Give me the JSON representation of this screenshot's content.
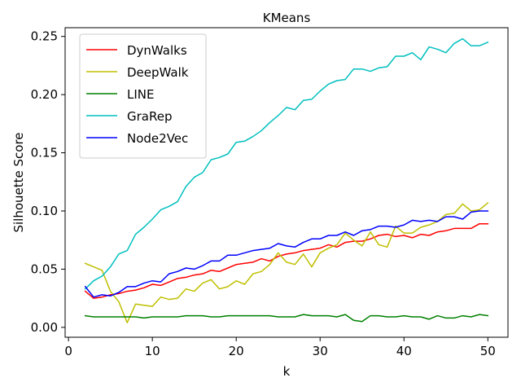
{
  "chart_data": {
    "type": "line",
    "title": "KMeans",
    "xlabel": "k",
    "ylabel": "Silhouette Score",
    "xlim": [
      -0.4,
      52.4
    ],
    "ylim": [
      -0.0085,
      0.2575
    ],
    "xticks": [
      0,
      10,
      20,
      30,
      40,
      50
    ],
    "yticks": [
      0.0,
      0.05,
      0.1,
      0.15,
      0.2,
      0.25
    ],
    "ytick_labels": [
      "0.00",
      "0.05",
      "0.10",
      "0.15",
      "0.20",
      "0.25"
    ],
    "grid": false,
    "legend_position": "upper-left",
    "x": [
      2,
      3,
      4,
      5,
      6,
      7,
      8,
      9,
      10,
      11,
      12,
      13,
      14,
      15,
      16,
      17,
      18,
      19,
      20,
      21,
      22,
      23,
      24,
      25,
      26,
      27,
      28,
      29,
      30,
      31,
      32,
      33,
      34,
      35,
      36,
      37,
      38,
      39,
      40,
      41,
      42,
      43,
      44,
      45,
      46,
      47,
      48,
      49,
      50
    ],
    "series": [
      {
        "name": "DynWalks",
        "color": "#ff0000",
        "values": [
          0.031,
          0.025,
          0.026,
          0.028,
          0.029,
          0.031,
          0.032,
          0.034,
          0.037,
          0.036,
          0.039,
          0.042,
          0.043,
          0.045,
          0.046,
          0.049,
          0.048,
          0.051,
          0.054,
          0.055,
          0.056,
          0.059,
          0.057,
          0.061,
          0.063,
          0.064,
          0.066,
          0.067,
          0.068,
          0.071,
          0.069,
          0.073,
          0.074,
          0.074,
          0.076,
          0.079,
          0.08,
          0.078,
          0.079,
          0.077,
          0.08,
          0.079,
          0.082,
          0.083,
          0.085,
          0.085,
          0.085,
          0.089,
          0.089
        ]
      },
      {
        "name": "DeepWalk",
        "color": "#bfbf00",
        "values": [
          0.055,
          0.052,
          0.049,
          0.031,
          0.022,
          0.004,
          0.02,
          0.019,
          0.018,
          0.026,
          0.024,
          0.025,
          0.033,
          0.031,
          0.038,
          0.041,
          0.033,
          0.035,
          0.04,
          0.037,
          0.046,
          0.048,
          0.054,
          0.064,
          0.056,
          0.054,
          0.063,
          0.052,
          0.064,
          0.068,
          0.071,
          0.081,
          0.075,
          0.07,
          0.082,
          0.071,
          0.069,
          0.087,
          0.081,
          0.081,
          0.086,
          0.088,
          0.091,
          0.097,
          0.098,
          0.106,
          0.1,
          0.101,
          0.107
        ]
      },
      {
        "name": "LINE",
        "color": "#008000",
        "values": [
          0.01,
          0.009,
          0.009,
          0.009,
          0.009,
          0.009,
          0.009,
          0.008,
          0.009,
          0.009,
          0.009,
          0.009,
          0.01,
          0.01,
          0.01,
          0.009,
          0.009,
          0.01,
          0.01,
          0.01,
          0.01,
          0.01,
          0.01,
          0.009,
          0.009,
          0.009,
          0.011,
          0.01,
          0.01,
          0.01,
          0.009,
          0.011,
          0.006,
          0.005,
          0.01,
          0.01,
          0.009,
          0.009,
          0.01,
          0.009,
          0.009,
          0.007,
          0.01,
          0.008,
          0.008,
          0.01,
          0.009,
          0.011,
          0.01
        ]
      },
      {
        "name": "GraRep",
        "color": "#00bfbf",
        "values": [
          0.033,
          0.04,
          0.044,
          0.052,
          0.063,
          0.066,
          0.08,
          0.086,
          0.093,
          0.101,
          0.104,
          0.108,
          0.121,
          0.129,
          0.133,
          0.144,
          0.146,
          0.149,
          0.159,
          0.16,
          0.164,
          0.169,
          0.176,
          0.182,
          0.189,
          0.187,
          0.195,
          0.196,
          0.203,
          0.209,
          0.212,
          0.213,
          0.222,
          0.222,
          0.22,
          0.223,
          0.224,
          0.233,
          0.233,
          0.236,
          0.23,
          0.241,
          0.239,
          0.236,
          0.244,
          0.248,
          0.242,
          0.242,
          0.245
        ]
      },
      {
        "name": "Node2Vec",
        "color": "#0000ff",
        "values": [
          0.035,
          0.026,
          0.028,
          0.027,
          0.03,
          0.035,
          0.035,
          0.038,
          0.04,
          0.039,
          0.046,
          0.048,
          0.051,
          0.05,
          0.053,
          0.057,
          0.057,
          0.062,
          0.062,
          0.064,
          0.066,
          0.067,
          0.068,
          0.072,
          0.07,
          0.069,
          0.073,
          0.076,
          0.076,
          0.079,
          0.079,
          0.082,
          0.079,
          0.083,
          0.084,
          0.087,
          0.087,
          0.086,
          0.088,
          0.092,
          0.091,
          0.092,
          0.091,
          0.095,
          0.095,
          0.093,
          0.099,
          0.1,
          0.1
        ]
      }
    ]
  }
}
